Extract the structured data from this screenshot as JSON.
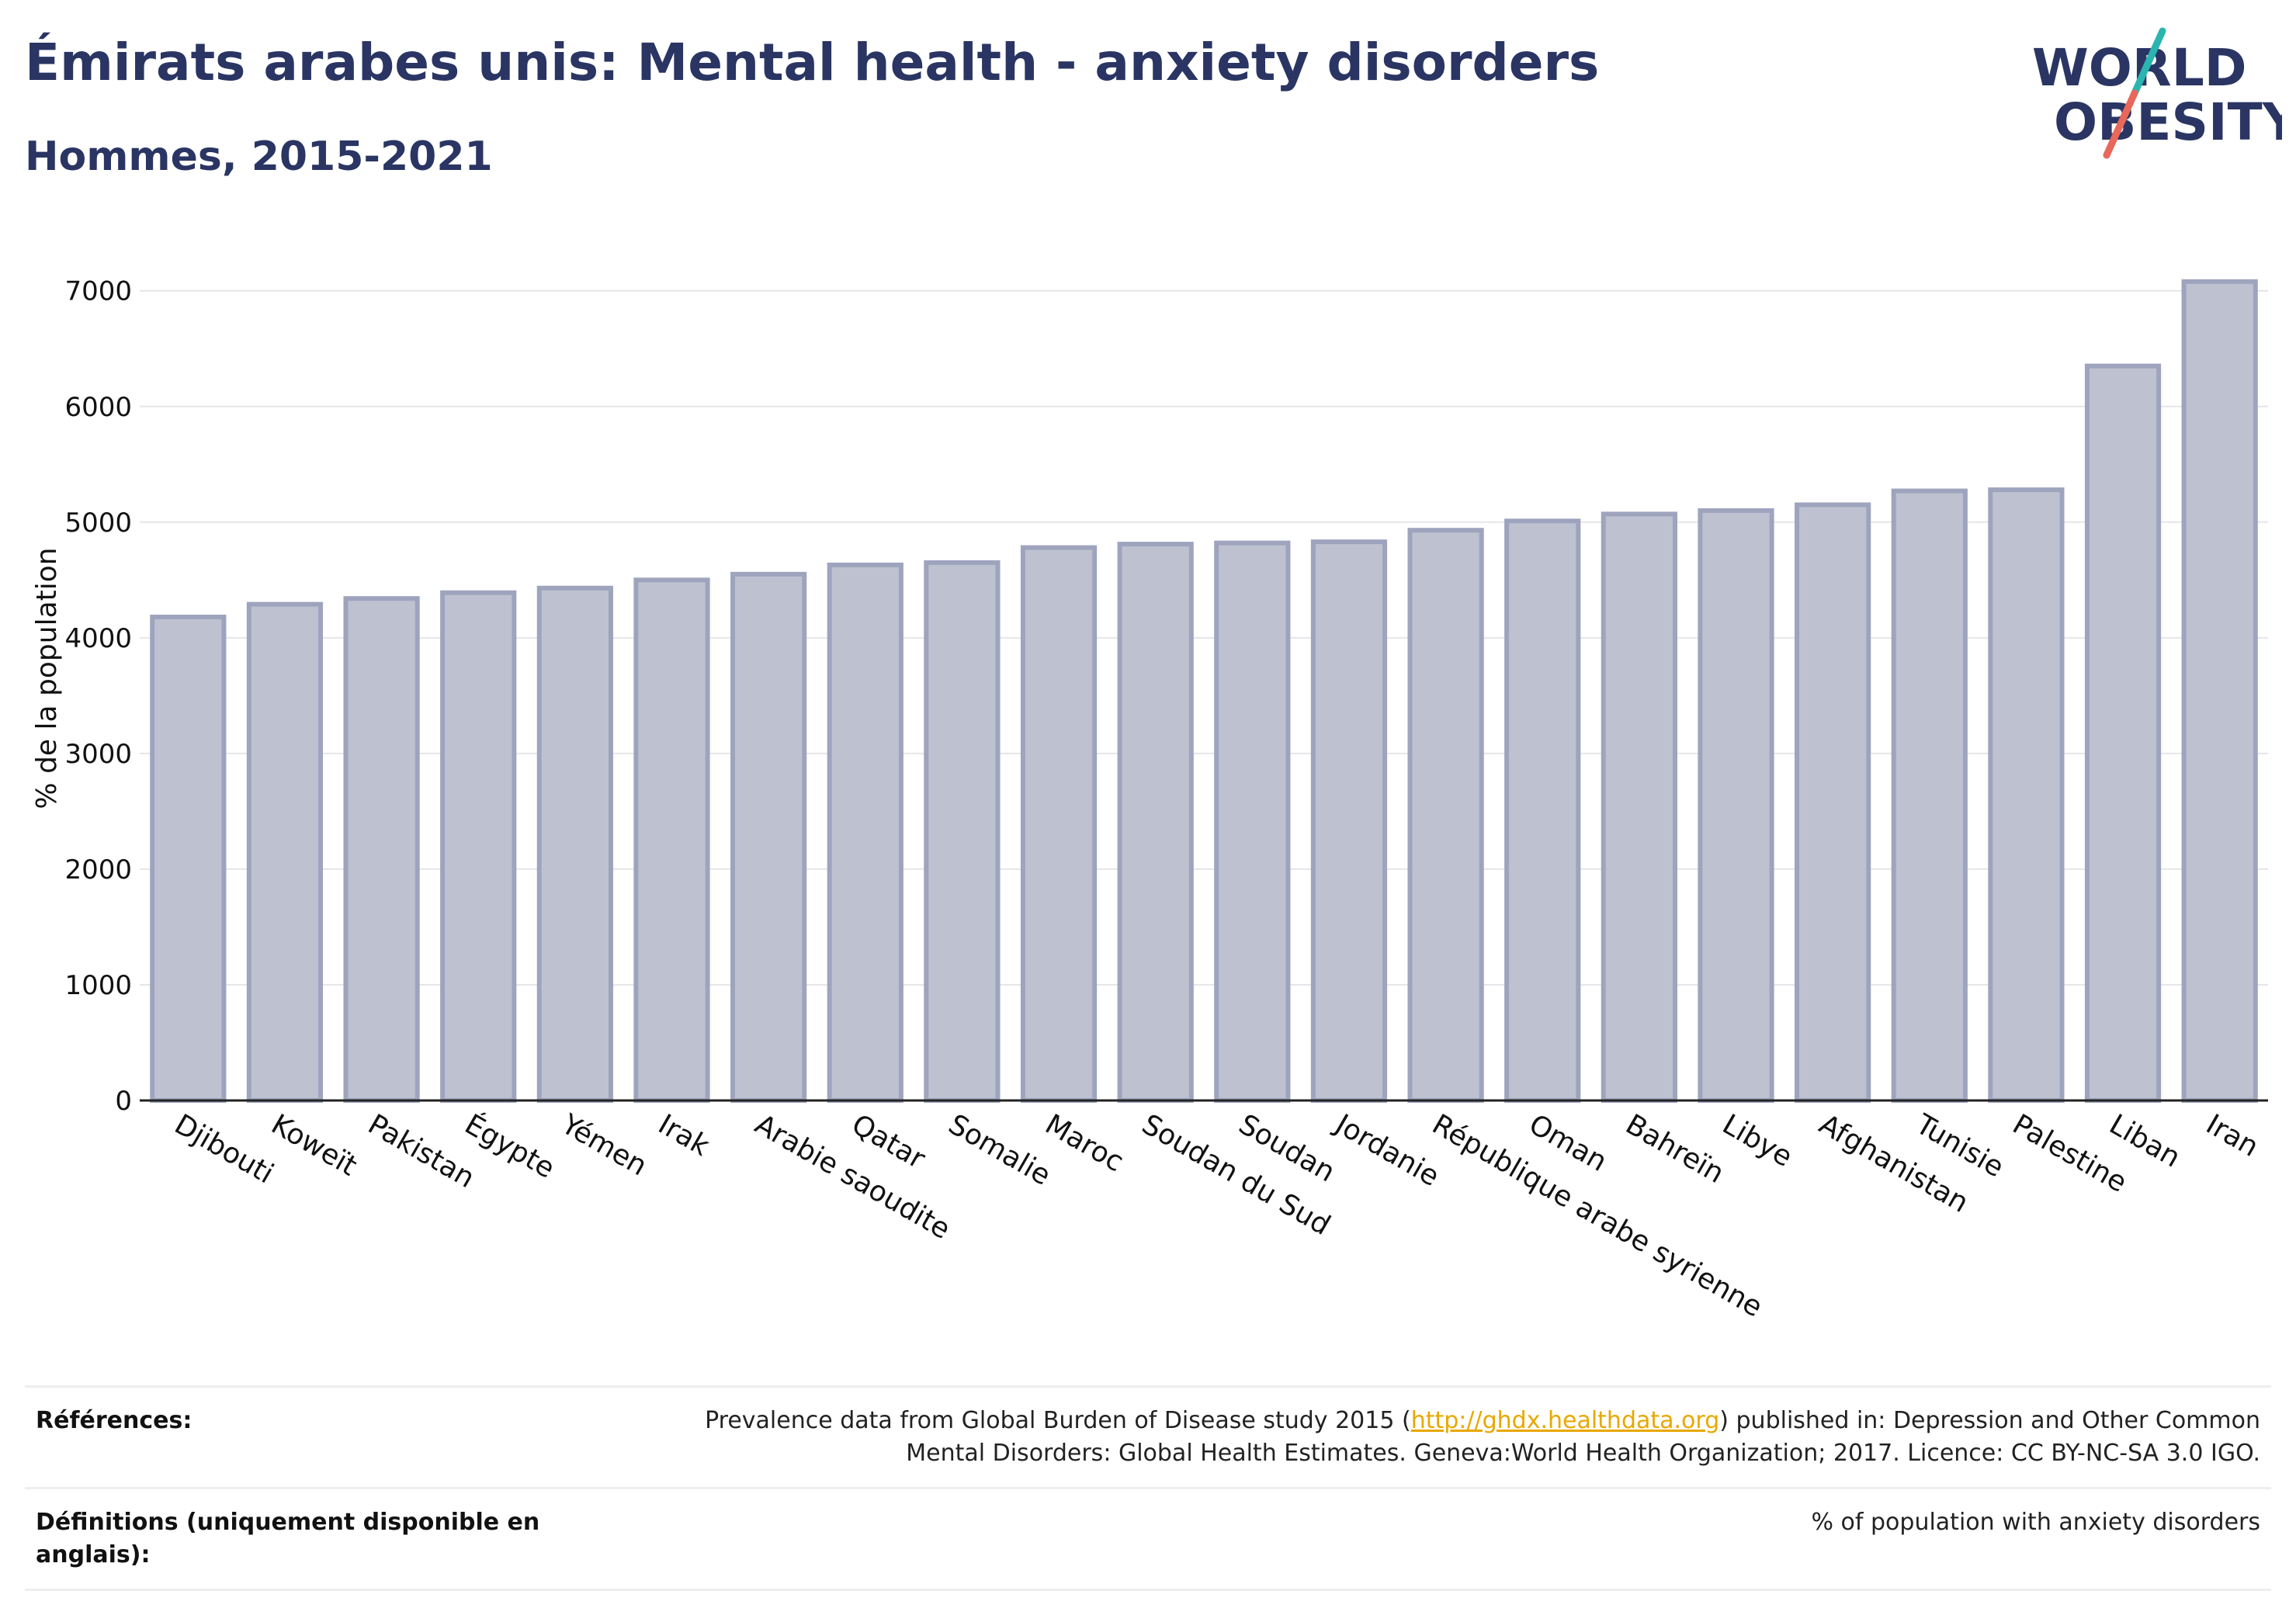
{
  "header": {
    "title": "Émirats arabes unis: Mental health - anxiety disorders",
    "subtitle": "Hommes, 2015-2021"
  },
  "logo": {
    "line1": "WORLD",
    "line2": "OBESITY",
    "accent_teal": "#2bb5b0",
    "accent_red": "#e8685a",
    "text_color": "#2a3563"
  },
  "chart_data": {
    "type": "bar",
    "title": "Émirats arabes unis: Mental health - anxiety disorders",
    "subtitle": "Hommes, 2015-2021",
    "xlabel": "",
    "ylabel": "% de la population",
    "ylim": [
      0,
      7300
    ],
    "yticks": [
      0,
      1000,
      2000,
      3000,
      4000,
      5000,
      6000,
      7000
    ],
    "grid": true,
    "bar_fill": "#bec2d0",
    "bar_stroke": "#9ea4bd",
    "categories": [
      "Djibouti",
      "Koweït",
      "Pakistan",
      "Égypte",
      "Yémen",
      "Irak",
      "Arabie saoudite",
      "Qatar",
      "Somalie",
      "Maroc",
      "Soudan du Sud",
      "Soudan",
      "Jordanie",
      "République arabe syrienne",
      "Oman",
      "Bahreïn",
      "Libye",
      "Afghanistan",
      "Tunisie",
      "Palestine",
      "Liban",
      "Iran"
    ],
    "values": [
      4180,
      4290,
      4340,
      4390,
      4430,
      4500,
      4550,
      4630,
      4650,
      4780,
      4810,
      4820,
      4830,
      4930,
      5010,
      5070,
      5100,
      5150,
      5270,
      5280,
      6350,
      7080
    ]
  },
  "references": {
    "refs_label": "Références:",
    "refs_text_before": "Prevalence data from Global Burden of Disease study 2015 (",
    "refs_link": "http://ghdx.healthdata.org",
    "refs_text_after": ") published in: Depression and Other Common Mental Disorders: Global Health Estimates. Geneva:World Health Organization; 2017. Licence: CC BY-NC-SA 3.0 IGO.",
    "defs_label": "Définitions (uniquement disponible en anglais):",
    "defs_text": "% of population with anxiety disorders"
  }
}
